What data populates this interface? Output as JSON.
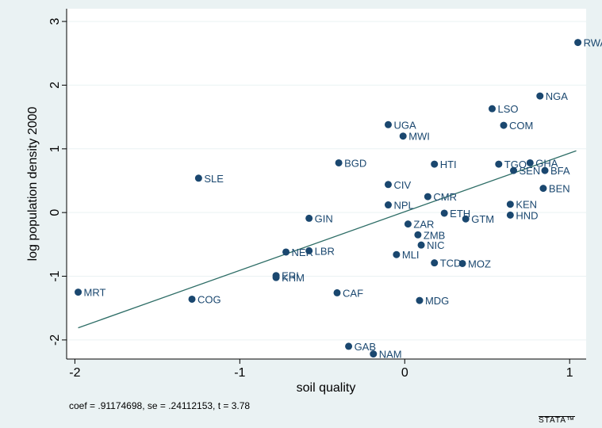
{
  "chart_data": {
    "type": "scatter",
    "title": "",
    "xlabel": "soil quality",
    "ylabel": "log population density 2000",
    "xlim": [
      -2.05,
      1.1
    ],
    "ylim": [
      -2.3,
      3.2
    ],
    "x_ticks": [
      -2,
      -1,
      0,
      1
    ],
    "x_tick_labels": [
      "-2",
      "-1",
      "0",
      "1"
    ],
    "y_ticks": [
      -2,
      -1,
      0,
      1,
      2,
      3
    ],
    "y_tick_labels": [
      "-2",
      "-1",
      "0",
      "1",
      "2",
      "3"
    ],
    "grid": "horizontal",
    "fit_line": {
      "x": [
        -1.98,
        1.04
      ],
      "y": [
        -1.81,
        0.97
      ]
    },
    "points": [
      {
        "label": "RWA",
        "x": 1.05,
        "y": 2.67
      },
      {
        "label": "NGA",
        "x": 0.82,
        "y": 1.83
      },
      {
        "label": "LSO",
        "x": 0.53,
        "y": 1.63
      },
      {
        "label": "COM",
        "x": 0.6,
        "y": 1.37
      },
      {
        "label": "UGA",
        "x": -0.1,
        "y": 1.38
      },
      {
        "label": "MWI",
        "x": -0.01,
        "y": 1.2
      },
      {
        "label": "BGD",
        "x": -0.4,
        "y": 0.78
      },
      {
        "label": "HTI",
        "x": 0.18,
        "y": 0.76
      },
      {
        "label": "TGO",
        "x": 0.57,
        "y": 0.76
      },
      {
        "label": "GHA",
        "x": 0.76,
        "y": 0.78
      },
      {
        "label": "SEN",
        "x": 0.66,
        "y": 0.66
      },
      {
        "label": "BFA",
        "x": 0.85,
        "y": 0.66
      },
      {
        "label": "BEN",
        "x": 0.84,
        "y": 0.38
      },
      {
        "label": "SLE",
        "x": -1.25,
        "y": 0.54
      },
      {
        "label": "CIV",
        "x": -0.1,
        "y": 0.44
      },
      {
        "label": "CMR",
        "x": 0.14,
        "y": 0.25
      },
      {
        "label": "NPL",
        "x": -0.1,
        "y": 0.12
      },
      {
        "label": "KEN",
        "x": 0.64,
        "y": 0.13
      },
      {
        "label": "ETH",
        "x": 0.24,
        "y": -0.01
      },
      {
        "label": "HND",
        "x": 0.64,
        "y": -0.04
      },
      {
        "label": "GTM",
        "x": 0.37,
        "y": -0.1
      },
      {
        "label": "GIN",
        "x": -0.58,
        "y": -0.09
      },
      {
        "label": "ZAR",
        "x": 0.02,
        "y": -0.18
      },
      {
        "label": "ZMB",
        "x": 0.08,
        "y": -0.35
      },
      {
        "label": "NIC",
        "x": 0.1,
        "y": -0.51
      },
      {
        "label": "LBR",
        "x": -0.58,
        "y": -0.6
      },
      {
        "label": "NER",
        "x": -0.72,
        "y": -0.62
      },
      {
        "label": "MLI",
        "x": -0.05,
        "y": -0.66
      },
      {
        "label": "TCD",
        "x": 0.18,
        "y": -0.79
      },
      {
        "label": "MOZ",
        "x": 0.35,
        "y": -0.8
      },
      {
        "label": "ERI",
        "x": -0.78,
        "y": -0.99
      },
      {
        "label": "KHM",
        "x": -0.78,
        "y": -1.02
      },
      {
        "label": "CAF",
        "x": -0.41,
        "y": -1.26
      },
      {
        "label": "MDG",
        "x": 0.09,
        "y": -1.38
      },
      {
        "label": "MRT",
        "x": -1.98,
        "y": -1.25
      },
      {
        "label": "COG",
        "x": -1.29,
        "y": -1.36
      },
      {
        "label": "GAB",
        "x": -0.34,
        "y": -2.1
      },
      {
        "label": "NAM",
        "x": -0.19,
        "y": -2.22
      }
    ],
    "note": "coef = .91174698, se = .24112153, t = 3.78",
    "colors": {
      "marker": "#1a476f",
      "fit_line": "#2d6d66",
      "grid": "#eaf2f3",
      "background": "#eaf2f3",
      "plot_background": "#ffffff"
    }
  },
  "logo_text": "STATA™"
}
